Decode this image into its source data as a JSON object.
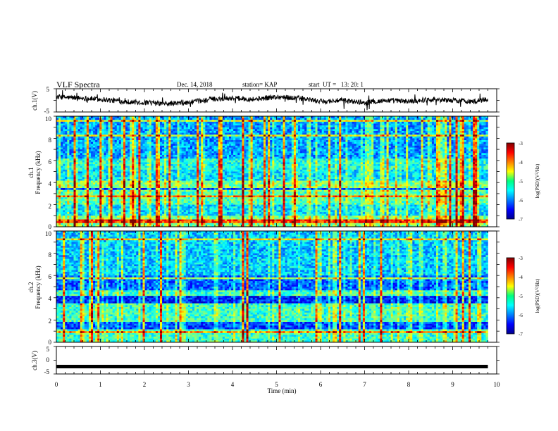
{
  "header": {
    "title": "VLF Spectra",
    "date": "Dec. 14, 2018",
    "station": "station= KAP",
    "start": "start  UT =   13: 20: 1"
  },
  "colors": {
    "axes": "#000000",
    "trace": "#000000",
    "spectrogram_low": "#00008f",
    "spectrogram_high": "#800000"
  },
  "colorbar": {
    "label_math": "log(PSD)(V",
    "label_sup": "2",
    "label_end": "/Hz)",
    "ticks": [
      "-3",
      "-4",
      "-5",
      "-6",
      "-7"
    ],
    "range": [
      -7,
      -3
    ],
    "colormap": "jet"
  },
  "chart_data": [
    {
      "type": "line",
      "ylabel": "ch.1(V)",
      "ylim": [
        -5,
        5
      ],
      "yticks": [
        "5",
        "-5"
      ],
      "xlim": [
        0,
        10
      ],
      "description_mean": 0.8,
      "x": [
        0,
        0.5,
        1,
        1.5,
        2,
        2.5,
        3,
        3.5,
        4,
        4.5,
        5,
        5.5,
        6,
        6.5,
        7,
        7.5,
        8,
        8.5,
        9,
        9.5,
        9.8
      ],
      "values": [
        1.5,
        1.0,
        0.5,
        -0.5,
        -1.0,
        -1.5,
        -1.0,
        0.5,
        1.0,
        0.5,
        1.5,
        1.0,
        -0.5,
        0.0,
        -1.0,
        0.0,
        -0.5,
        0.5,
        0.0,
        -0.5,
        0.5
      ]
    },
    {
      "type": "heatmap",
      "ylabel_line1": "ch.1",
      "ylabel_line2": "Frequency (kHz)",
      "ylim": [
        0,
        10
      ],
      "yticks": [
        "10",
        "8",
        "6",
        "4",
        "2",
        "0"
      ],
      "xlim": [
        0,
        10
      ],
      "time_extent": [
        0,
        9.8
      ],
      "value_range": [
        -7,
        -3
      ]
    },
    {
      "type": "heatmap",
      "ylabel_line1": "ch.2",
      "ylabel_line2": "Frequency (kHz)",
      "ylim": [
        0,
        10
      ],
      "yticks": [
        "10",
        "8",
        "6",
        "4",
        "2",
        "0"
      ],
      "xlim": [
        0,
        10
      ],
      "time_extent": [
        0,
        9.8
      ],
      "value_range": [
        -7,
        -3
      ]
    },
    {
      "type": "line",
      "ylabel": "ch.3(V)",
      "ylim": [
        -5,
        5
      ],
      "yticks": [
        "5",
        "0",
        "-5"
      ],
      "xlim": [
        0,
        10
      ],
      "xlabel": "Time (min)",
      "xticks": [
        "0",
        "1",
        "2",
        "3",
        "4",
        "5",
        "6",
        "7",
        "8",
        "9",
        "10"
      ],
      "x": [
        0,
        9.8
      ],
      "values": [
        -2.3,
        -2.3
      ]
    }
  ]
}
